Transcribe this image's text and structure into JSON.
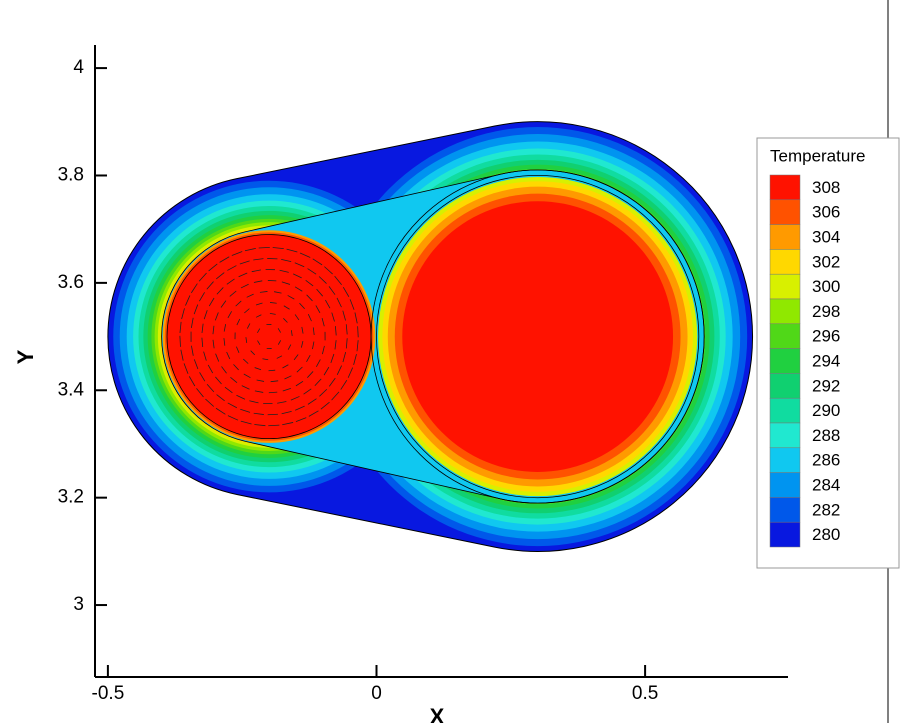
{
  "chart_data": {
    "type": "contour",
    "xlabel": "X",
    "ylabel": "Y",
    "xlim": [
      -0.524,
      0.766
    ],
    "ylim": [
      2.866,
      4.043
    ],
    "xticks": [
      -0.5,
      0,
      0.5
    ],
    "yticks": [
      3,
      3.2,
      3.4,
      3.6,
      3.8,
      4
    ],
    "legend": {
      "title": "Temperature",
      "position": "right"
    },
    "levels": [
      308,
      306,
      304,
      302,
      300,
      298,
      296,
      294,
      292,
      290,
      288,
      286,
      284,
      282,
      280
    ],
    "colors": [
      "#ff1200",
      "#ff5200",
      "#ff9a00",
      "#ffd800",
      "#d8f000",
      "#90e800",
      "#50d818",
      "#20d040",
      "#10d070",
      "#10dca0",
      "#20e8d0",
      "#10c8f0",
      "#0094f0",
      "#0058ea",
      "#0818e0"
    ]
  }
}
